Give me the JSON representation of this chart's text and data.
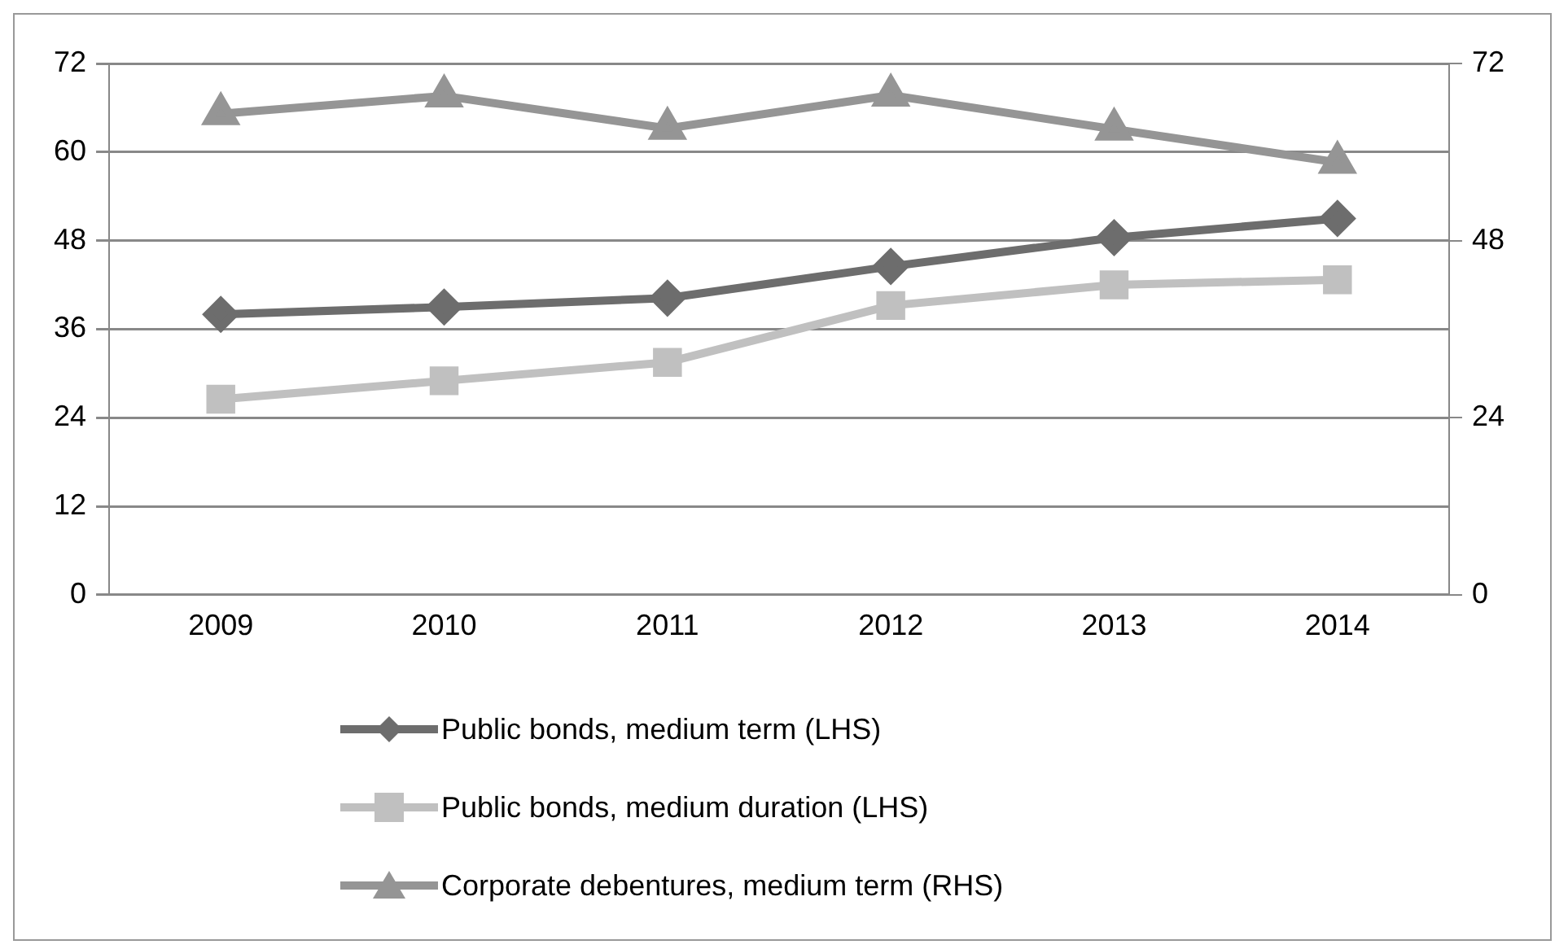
{
  "chart_data": {
    "type": "line",
    "categories": [
      "2009",
      "2010",
      "2011",
      "2012",
      "2013",
      "2014"
    ],
    "series": [
      {
        "name": "Public bonds, medium term (LHS)",
        "color": "#6d6d6d",
        "marker": "diamond",
        "values": [
          38.0,
          39.0,
          40.2,
          44.5,
          48.4,
          51.0
        ]
      },
      {
        "name": "Public bonds, medium duration (LHS)",
        "color": "#c0c0c0",
        "marker": "square",
        "values": [
          26.5,
          29.0,
          31.5,
          39.2,
          42.0,
          42.7
        ]
      },
      {
        "name": "Corporate debentures, medium term (RHS)",
        "color": "#959595",
        "marker": "triangle",
        "axis": "y2",
        "values": [
          65.2,
          67.6,
          63.2,
          67.7,
          63.1,
          58.6
        ]
      }
    ],
    "ylim": [
      0,
      72
    ],
    "yticks": [
      0,
      12,
      24,
      36,
      48,
      60,
      72
    ],
    "y2lim": [
      0,
      72
    ],
    "y2ticks": [
      0,
      24,
      48,
      72
    ],
    "grid": "y",
    "legend": "bottom",
    "line_style": "solid"
  }
}
